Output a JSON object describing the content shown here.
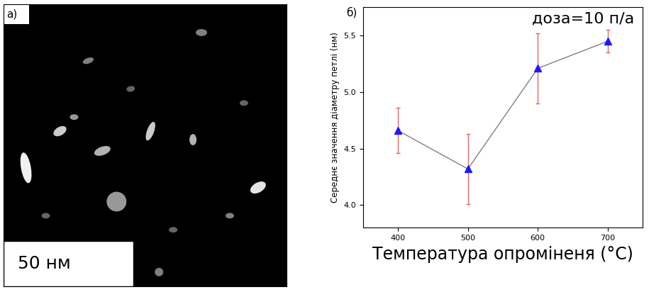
{
  "image": {
    "label": "а)",
    "scale_bar": "50 нм"
  },
  "chart_data": {
    "type": "line",
    "title": "б)",
    "annotations": [
      "доза=10 п/а"
    ],
    "x_label": "Температура опроміненя (°C)",
    "y_label": "Середнє значення діаметру петлі (нм)",
    "x": [
      400,
      500,
      600,
      700
    ],
    "values": [
      4.66,
      4.32,
      5.21,
      5.45
    ],
    "errors": [
      0.2,
      0.31,
      0.31,
      0.1
    ],
    "color": "#1a1aff",
    "marker": "triangle",
    "line_style": "solid",
    "xlim": [
      350,
      750
    ],
    "xticks": [
      400,
      500,
      600,
      700
    ],
    "ylim": [
      3.8,
      5.75
    ],
    "yticks": [
      {
        "value": 4,
        "label": "4.0"
      },
      {
        "value": 4.5,
        "label": "4.5"
      },
      {
        "value": 5,
        "label": "5.0"
      },
      {
        "value": 5.5,
        "label": "5.5"
      }
    ],
    "grid": false
  }
}
